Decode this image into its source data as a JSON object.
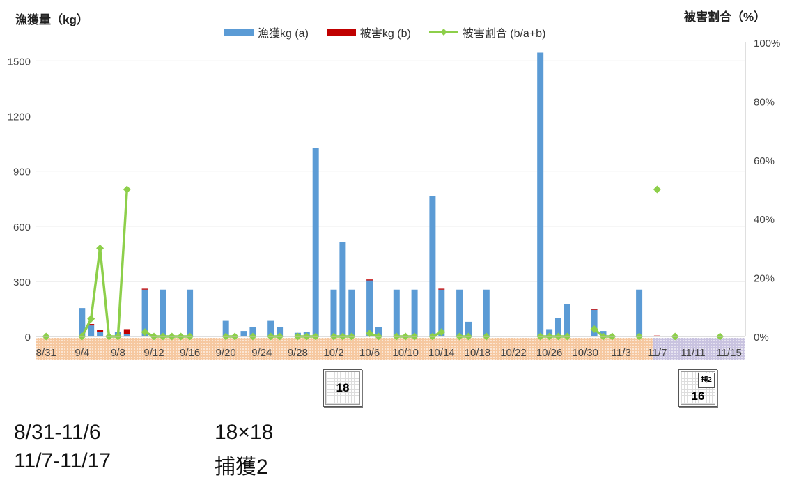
{
  "chart_data": {
    "type": "bar",
    "ylabel_left": "漁獲量（kg）",
    "ylabel_right": "被害割合（%）",
    "ylim_left": [
      0,
      1600
    ],
    "ylim_right": [
      0,
      100
    ],
    "yticks_left": [
      "0",
      "300",
      "600",
      "900",
      "1200",
      "1500"
    ],
    "yticks_right": [
      "0%",
      "20%",
      "40%",
      "60%",
      "80%",
      "100%"
    ],
    "x_labels": [
      "8/31",
      "9/4",
      "9/8",
      "9/12",
      "9/16",
      "9/20",
      "9/24",
      "9/28",
      "10/2",
      "10/6",
      "10/10",
      "10/14",
      "10/18",
      "10/22",
      "10/26",
      "10/30",
      "11/3",
      "11/7",
      "11/11",
      "11/15"
    ],
    "x_start": "2024-08-31",
    "x_end": "2024-11-17",
    "legend_position": "top",
    "series": [
      {
        "name": "漁獲kg (a)",
        "color": "#5b9bd5",
        "points": [
          [
            "9/4",
            155
          ],
          [
            "9/5",
            60
          ],
          [
            "9/6",
            25
          ],
          [
            "9/7",
            5
          ],
          [
            "9/8",
            25
          ],
          [
            "9/9",
            15
          ],
          [
            "9/11",
            255
          ],
          [
            "9/13",
            255
          ],
          [
            "9/16",
            255
          ],
          [
            "9/20",
            85
          ],
          [
            "9/22",
            30
          ],
          [
            "9/23",
            50
          ],
          [
            "9/25",
            85
          ],
          [
            "9/26",
            50
          ],
          [
            "9/28",
            20
          ],
          [
            "9/29",
            25
          ],
          [
            "9/30",
            1025
          ],
          [
            "10/2",
            255
          ],
          [
            "10/3",
            515
          ],
          [
            "10/4",
            255
          ],
          [
            "10/6",
            305
          ],
          [
            "10/7",
            50
          ],
          [
            "10/9",
            255
          ],
          [
            "10/11",
            255
          ],
          [
            "10/13",
            765
          ],
          [
            "10/14",
            255
          ],
          [
            "10/16",
            255
          ],
          [
            "10/17",
            80
          ],
          [
            "10/19",
            255
          ],
          [
            "10/25",
            1545
          ],
          [
            "10/26",
            40
          ],
          [
            "10/27",
            100
          ],
          [
            "10/28",
            175
          ],
          [
            "10/31",
            145
          ],
          [
            "11/1",
            30
          ],
          [
            "11/5",
            255
          ]
        ]
      },
      {
        "name": "被害kg (b)",
        "color": "#c00000",
        "points": [
          [
            "9/5",
            8
          ],
          [
            "9/6",
            12
          ],
          [
            "9/9",
            25
          ],
          [
            "9/11",
            5
          ],
          [
            "10/6",
            5
          ],
          [
            "10/14",
            5
          ],
          [
            "10/31",
            5
          ],
          [
            "11/7",
            5
          ]
        ]
      },
      {
        "name": "被害割合 (b/a+b)",
        "color": "#8dcf4a",
        "axis": "right",
        "points": [
          [
            "8/31",
            0
          ],
          [
            "9/4",
            0
          ],
          [
            "9/5",
            6
          ],
          [
            "9/6",
            30
          ],
          [
            "9/7",
            0
          ],
          [
            "9/8",
            0
          ],
          [
            "9/9",
            50
          ],
          [
            "9/11",
            1.5
          ],
          [
            "9/12",
            0
          ],
          [
            "9/13",
            0
          ],
          [
            "9/14",
            0
          ],
          [
            "9/15",
            0
          ],
          [
            "9/16",
            0
          ],
          [
            "9/20",
            0
          ],
          [
            "9/21",
            0
          ],
          [
            "9/23",
            0
          ],
          [
            "9/25",
            0
          ],
          [
            "9/26",
            0
          ],
          [
            "9/28",
            0
          ],
          [
            "9/29",
            0
          ],
          [
            "9/30",
            0
          ],
          [
            "10/2",
            0
          ],
          [
            "10/3",
            0
          ],
          [
            "10/4",
            0
          ],
          [
            "10/6",
            1
          ],
          [
            "10/7",
            0
          ],
          [
            "10/9",
            0
          ],
          [
            "10/10",
            0
          ],
          [
            "10/11",
            0
          ],
          [
            "10/13",
            0
          ],
          [
            "10/14",
            1.5
          ],
          [
            "10/16",
            0
          ],
          [
            "10/17",
            0
          ],
          [
            "10/19",
            0
          ],
          [
            "10/25",
            0
          ],
          [
            "10/26",
            0
          ],
          [
            "10/27",
            0
          ],
          [
            "10/28",
            0
          ],
          [
            "10/31",
            2.5
          ],
          [
            "11/1",
            0
          ],
          [
            "11/2",
            0
          ],
          [
            "11/5",
            0
          ],
          [
            "11/7",
            50
          ],
          [
            "11/9",
            0
          ],
          [
            "11/14",
            0
          ]
        ]
      }
    ],
    "annotations": [
      "18",
      "捕2",
      "16"
    ]
  },
  "axis_titles": {
    "left": "漁獲量（kg）",
    "right": "被害割合（%）"
  },
  "legend": [
    {
      "label": "漁獲kg (a)",
      "color": "#5b9bd5",
      "kind": "bar"
    },
    {
      "label": "被害kg (b)",
      "color": "#c00000",
      "kind": "bar"
    },
    {
      "label": "被害割合 (b/a+b)",
      "color": "#8dcf4a",
      "kind": "line"
    }
  ],
  "bands": [
    {
      "label": "8/31-11/6",
      "color": "#f6c8a0"
    },
    {
      "label": "11/7-11/17",
      "color": "#c9c3e0"
    }
  ],
  "mesh_boxes": [
    {
      "label": "18"
    },
    {
      "label": "16",
      "tag": "捕2"
    }
  ],
  "footer": {
    "row1_period": "8/31-11/6",
    "row1_gear": "18×18",
    "row2_period": "11/7-11/17",
    "row2_gear": "捕獲2"
  }
}
